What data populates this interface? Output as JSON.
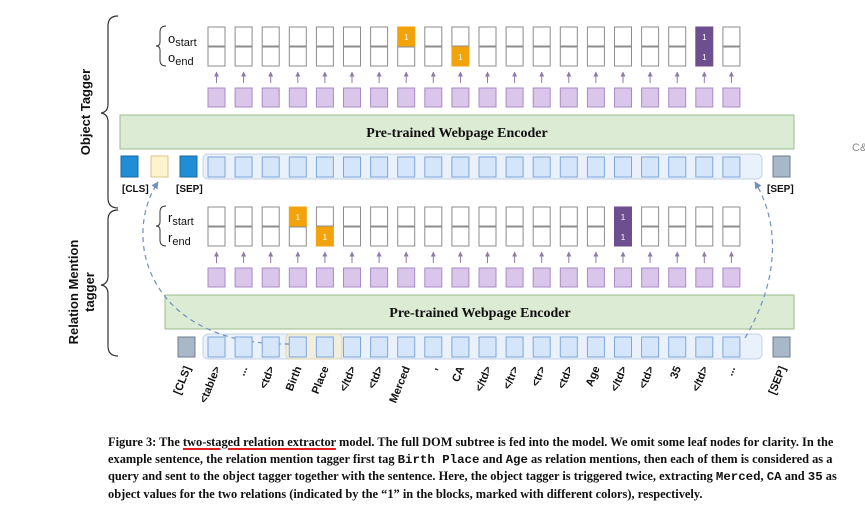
{
  "panels": {
    "object_tagger_label": "Object Tagger",
    "relation_tagger_label_line1": "Relation Mention",
    "relation_tagger_label_line2": "tagger"
  },
  "encoder": {
    "label": "Pre-trained Webpage Encoder"
  },
  "rows": {
    "o_start": {
      "base": "o",
      "sub": "start"
    },
    "o_end": {
      "base": "o",
      "sub": "end"
    },
    "r_start": {
      "base": "r",
      "sub": "start"
    },
    "r_end": {
      "base": "r",
      "sub": "end"
    }
  },
  "marks": {
    "one": "1",
    "orange": "#f2a20a",
    "purple": "#6d4e8e"
  },
  "tokens": {
    "cls": "[CLS]",
    "sep": "[SEP]",
    "input_tokens": [
      "[CLS]",
      "<table>",
      "...",
      "<td>",
      "Birth",
      "Place",
      "</td>",
      "<td>",
      "Merced",
      ",",
      "CA",
      "</td>",
      "</tr>",
      "<tr>",
      "<td>",
      "Age",
      "</td>",
      "<td>",
      "35",
      "</td>",
      "...",
      "[SEP]"
    ]
  },
  "caption": {
    "prefix": "Figure 3: The ",
    "underlined": "two-staged relation extractor",
    "part1": " model. The full DOM subtree is fed into the model. We omit some leaf nodes for clarity. In the example sentence, the relation mention tagger first tag ",
    "code1": "Birth Place",
    "part2": " and ",
    "code2": "Age",
    "part3": " as relation mentions, then each of them is considered as a query and sent to the object tagger together with the sentence. Here, the object tagger is triggered twice, extracting ",
    "code3": "Merced",
    "part4": ", ",
    "code4": "CA",
    "part5": " and ",
    "code5": "35",
    "part6": " as object values for the two relations (indicated by the “1” in the blocks, marked with different colors), respectively."
  },
  "side_tab": "C&"
}
